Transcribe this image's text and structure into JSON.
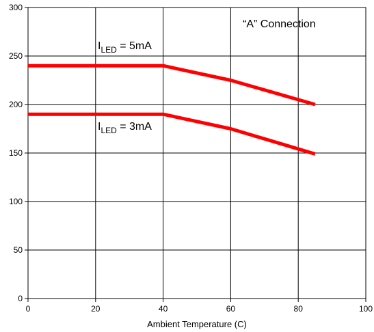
{
  "chart_data": {
    "type": "line",
    "title": "",
    "xlabel": "Ambient Temperature (C)",
    "ylabel": "",
    "xlim": [
      0,
      100
    ],
    "ylim": [
      0,
      300
    ],
    "xticks": [
      0,
      20,
      40,
      60,
      80,
      100
    ],
    "yticks": [
      0,
      50,
      100,
      150,
      200,
      250,
      300
    ],
    "grid": true,
    "series": [
      {
        "name": "I_LED = 5mA",
        "x": [
          0,
          40,
          60,
          85
        ],
        "y": [
          240,
          240,
          225,
          200
        ]
      },
      {
        "name": "I_LED = 3mA",
        "x": [
          0,
          40,
          60,
          85
        ],
        "y": [
          190,
          190,
          175,
          149
        ]
      }
    ],
    "annotations": [
      {
        "text": "“A” Connection"
      },
      {
        "main": "I",
        "sub": "LED",
        "rest": " = 5mA"
      },
      {
        "main": "I",
        "sub": "LED",
        "rest": " = 3mA"
      }
    ],
    "colors": {
      "series": "#ff0000",
      "grid": "#000000"
    }
  }
}
